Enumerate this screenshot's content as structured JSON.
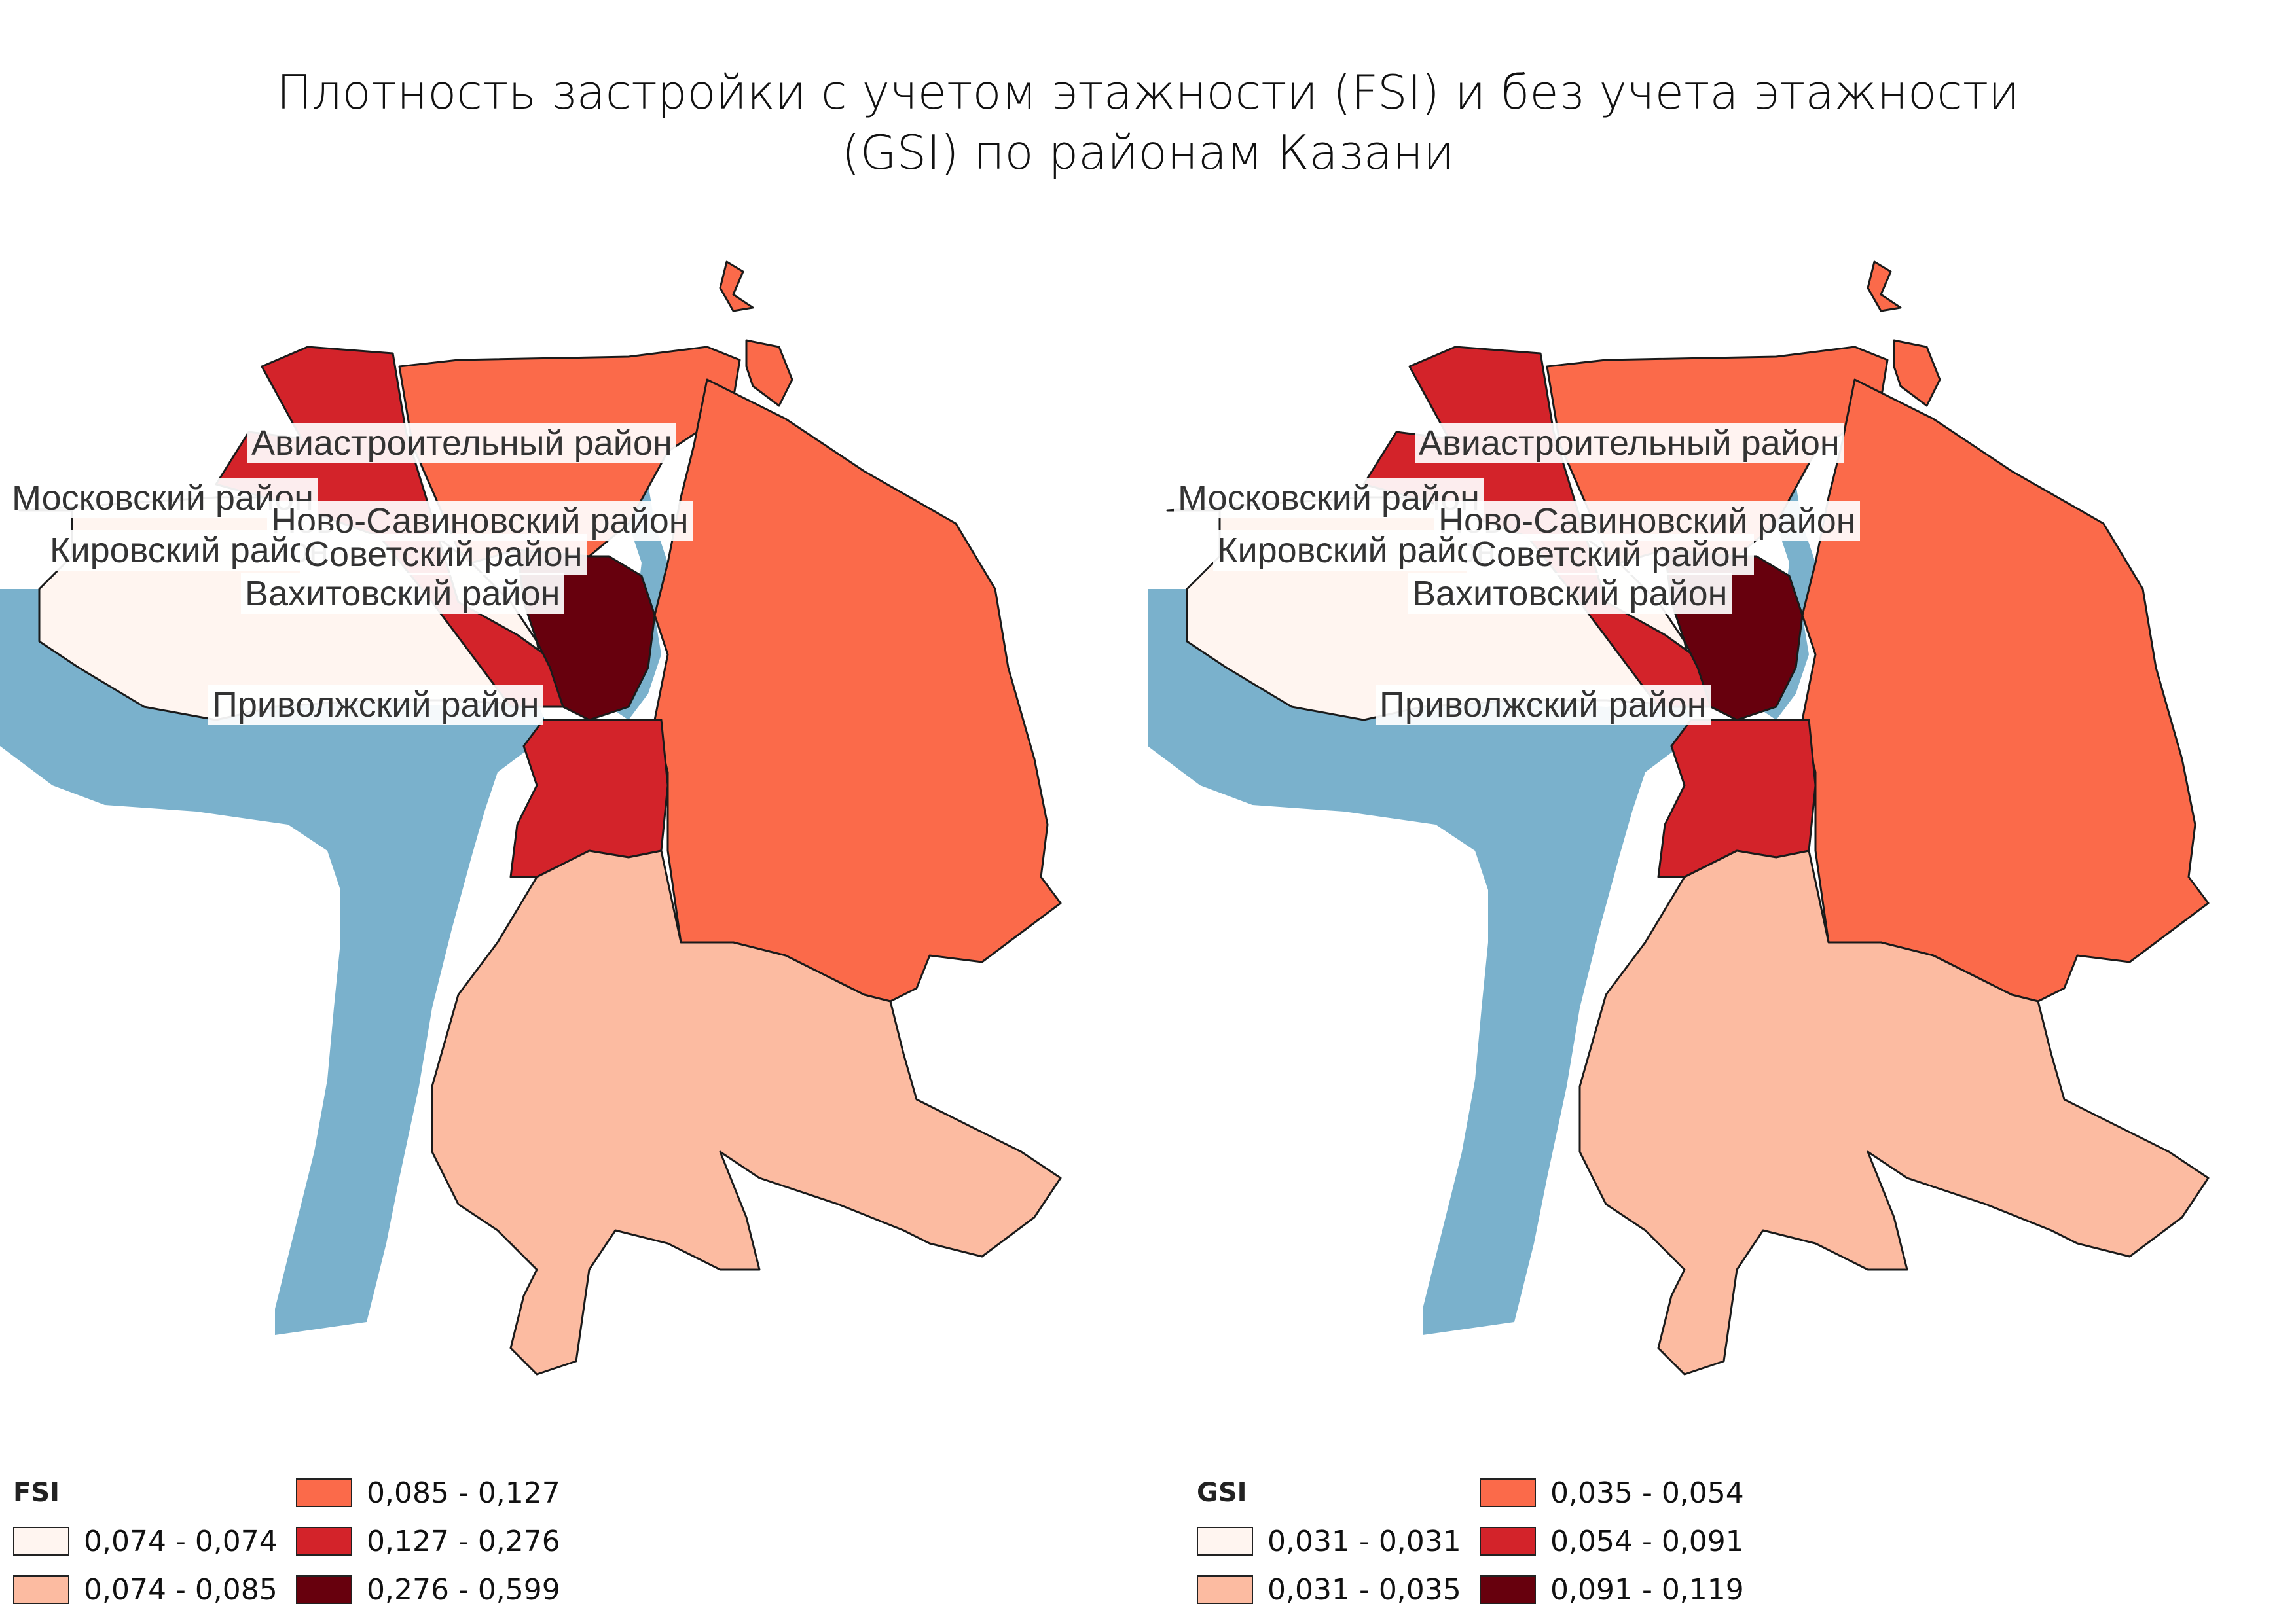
{
  "title_line1": "Плотность застройки с учетом этажности (FSI) и без учета этажности",
  "title_line2": "(GSI) по районам Казани",
  "colors": {
    "class1": "#fff5f0",
    "class2": "#fcbba1",
    "class3": "#fb6a4a",
    "class4": "#d3232a",
    "class5": "#67000d",
    "water": "#7ab1cc"
  },
  "districts": {
    "aviastroitelny": "Авиастроительный район",
    "moskovsky": "Московский район",
    "novosavinovsky": "Ново-Савиновский район",
    "kirovsky": "Кировский район",
    "sovetsky": "Советский район",
    "vakhitovsky": "Вахитовский район",
    "privolzhsky": "Приволжский район"
  },
  "maps": [
    {
      "indicator": "FSI",
      "legend_title": "FSI",
      "classes": [
        "0,074 - 0,074",
        "0,074 - 0,085",
        "0,085 - 0,127",
        "0,127 - 0,276",
        "0,276 - 0,599"
      ]
    },
    {
      "indicator": "GSI",
      "legend_title": "GSI",
      "classes": [
        "0,031 - 0,031",
        "0,031 - 0,035",
        "0,035 - 0,054",
        "0,054 - 0,091",
        "0,091 - 0,119"
      ]
    }
  ]
}
